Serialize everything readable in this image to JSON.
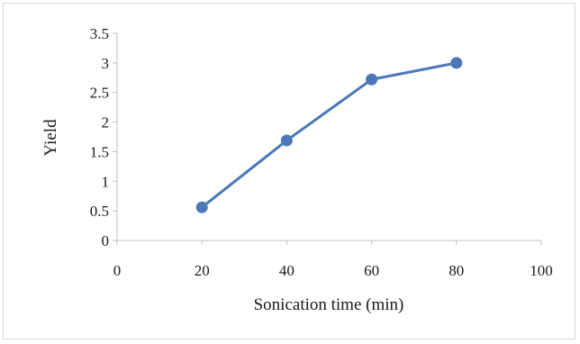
{
  "chart_data": {
    "type": "scatter",
    "title": "",
    "xlabel": "Sonication time (min)",
    "ylabel": "Yield",
    "xlim": [
      0,
      100
    ],
    "ylim": [
      0,
      3.5
    ],
    "x_ticks": [
      "0",
      "20",
      "40",
      "60",
      "80",
      "100"
    ],
    "y_ticks": [
      "0",
      "0.5",
      "1",
      "1.5",
      "2",
      "2.5",
      "3",
      "3.5"
    ],
    "grid": false,
    "legend": "none",
    "series": [
      {
        "color": "#4a78b8",
        "points": [
          {
            "x": 20,
            "y": 0.56
          },
          {
            "x": 40,
            "y": 1.69
          },
          {
            "x": 60,
            "y": 2.72
          },
          {
            "x": 80,
            "y": 3.0
          }
        ]
      }
    ]
  }
}
